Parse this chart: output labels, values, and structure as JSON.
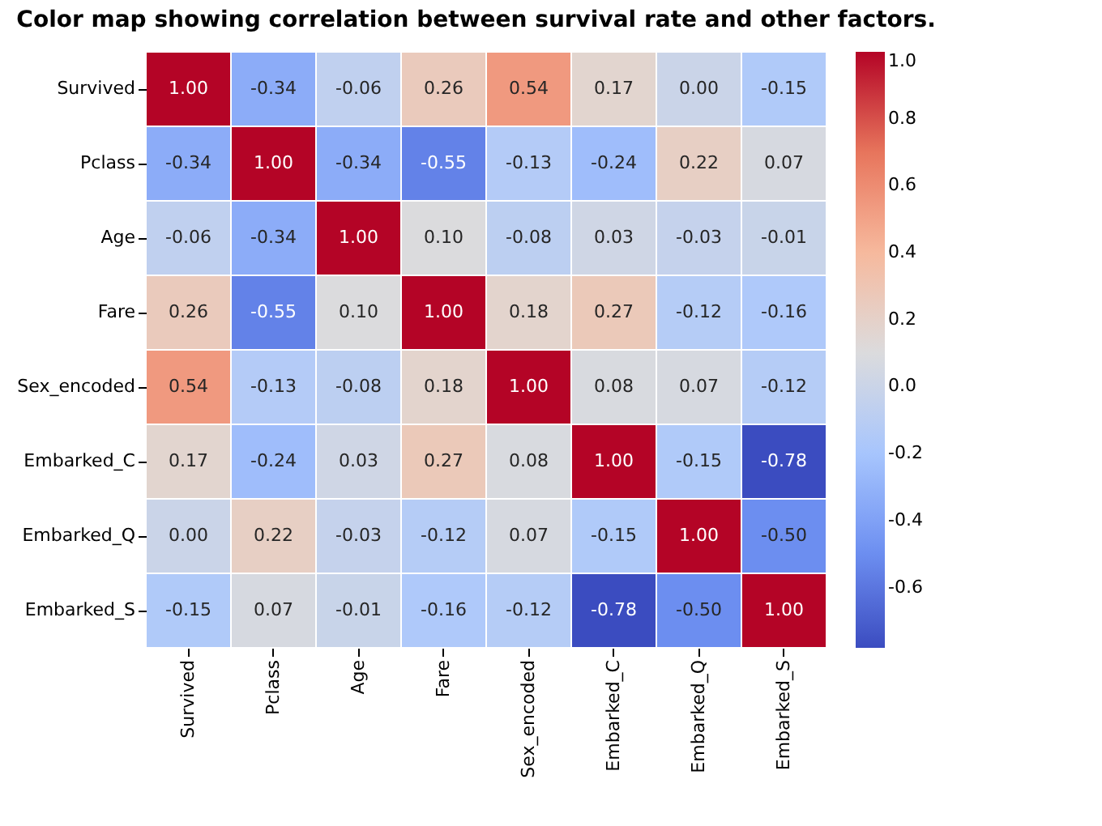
{
  "chart_data": {
    "type": "heatmap",
    "title": "Color map showing correlation between survival rate and other factors.",
    "categories": [
      "Survived",
      "Pclass",
      "Age",
      "Fare",
      "Sex_encoded",
      "Embarked_C",
      "Embarked_Q",
      "Embarked_S"
    ],
    "y_categories": [
      "Survived",
      "Pclass",
      "Age",
      "Fare",
      "Sex_encoded",
      "Embarked_C",
      "Embarked_Q",
      "Embarked_S"
    ],
    "cells": [
      [
        1.0,
        -0.34,
        -0.06,
        0.26,
        0.54,
        0.17,
        0.0,
        -0.15
      ],
      [
        -0.34,
        1.0,
        -0.34,
        -0.55,
        -0.13,
        -0.24,
        0.22,
        0.07
      ],
      [
        -0.06,
        -0.34,
        1.0,
        0.1,
        -0.08,
        0.03,
        -0.03,
        -0.01
      ],
      [
        0.26,
        -0.55,
        0.1,
        1.0,
        0.18,
        0.27,
        -0.12,
        -0.16
      ],
      [
        0.54,
        -0.13,
        -0.08,
        0.18,
        1.0,
        0.08,
        0.07,
        -0.12
      ],
      [
        0.17,
        -0.24,
        0.03,
        0.27,
        0.08,
        1.0,
        -0.15,
        -0.78
      ],
      [
        0.0,
        0.22,
        -0.03,
        -0.12,
        0.07,
        -0.15,
        1.0,
        -0.5
      ],
      [
        -0.15,
        0.07,
        -0.01,
        -0.16,
        -0.12,
        -0.78,
        -0.5,
        1.0
      ]
    ],
    "cell_labels": [
      [
        "1.00",
        "-0.34",
        "-0.06",
        "0.26",
        "0.54",
        "0.17",
        "0.00",
        "-0.15"
      ],
      [
        "-0.34",
        "1.00",
        "-0.34",
        "-0.55",
        "-0.13",
        "-0.24",
        "0.22",
        "0.07"
      ],
      [
        "-0.06",
        "-0.34",
        "1.00",
        "0.10",
        "-0.08",
        "0.03",
        "-0.03",
        "-0.01"
      ],
      [
        "0.26",
        "-0.55",
        "0.10",
        "1.00",
        "0.18",
        "0.27",
        "-0.12",
        "-0.16"
      ],
      [
        "0.54",
        "-0.13",
        "-0.08",
        "0.18",
        "1.00",
        "0.08",
        "0.07",
        "-0.12"
      ],
      [
        "0.17",
        "-0.24",
        "0.03",
        "0.27",
        "0.08",
        "1.00",
        "-0.15",
        "-0.78"
      ],
      [
        "0.00",
        "0.22",
        "-0.03",
        "-0.12",
        "0.07",
        "-0.15",
        "1.00",
        "-0.50"
      ],
      [
        "-0.15",
        "0.07",
        "-0.01",
        "-0.16",
        "-0.12",
        "-0.78",
        "-0.50",
        "1.00"
      ]
    ],
    "clim": [
      -0.78,
      1.0
    ],
    "cticks": [
      -0.6,
      -0.4,
      -0.2,
      {
        "value": 0,
        "label": "0.0"
      },
      0.2,
      0.4,
      0.6,
      0.8,
      {
        "value": 1,
        "label": "1.0"
      }
    ]
  }
}
